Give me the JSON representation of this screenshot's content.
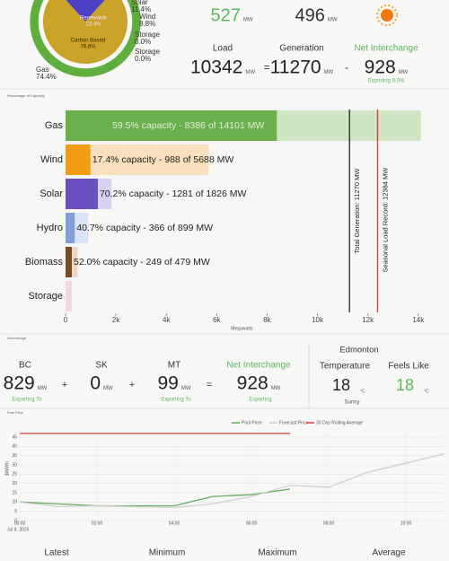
{
  "chart_data": [
    {
      "type": "donut",
      "outer": {
        "categories": [
          "Solar",
          "Wind",
          "Storage",
          "Storage",
          "Gas"
        ],
        "values": [
          11.4,
          8.8,
          0.0,
          0.0,
          74.4
        ],
        "value_labels": [
          "11.4%",
          "8.8%",
          "0.0%",
          "0.0%",
          "74.4%"
        ],
        "colors": [
          "#7b3fd6",
          "#f39c12",
          "#e8b5c8",
          "#e8b5c8",
          "#5fae3e"
        ]
      },
      "inner": {
        "categories": [
          "Renewable",
          "Carbon Based"
        ],
        "values": [
          23.4,
          76.6
        ],
        "value_labels": [
          "23.4%",
          "76.6%"
        ],
        "colors": [
          "#4b3fc4",
          "#c9a227"
        ]
      }
    },
    {
      "type": "bar",
      "title": "Percentage of Capacity",
      "categories": [
        "Gas",
        "Wind",
        "Solar",
        "Hydro",
        "Biomass",
        "Storage"
      ],
      "values": [
        8386,
        988,
        1281,
        366,
        249,
        0
      ],
      "capacity": [
        14101,
        5688,
        1826,
        899,
        479,
        250
      ],
      "bar_labels": [
        "59.5% capacity - 8386 of 14101 MW",
        "17.4% capacity - 988 of 5688 MW",
        "70.2% capacity - 1281 of 1826 MW",
        "40.7% capacity - 366 of 899 MW",
        "52.0% capacity - 249 of 479 MW",
        null
      ],
      "colors": [
        "#6ab04c",
        "#f39c12",
        "#6a4fc0",
        "#7f9fd8",
        "#7a4a1e",
        "#e8b5c8"
      ],
      "capacity_colors": [
        "#cfe5c3",
        "#fbe0bd",
        "#d9d1f0",
        "#dbe4f6",
        "#ead8c8",
        "#f1d7e1"
      ],
      "xlim": [
        0,
        14150
      ],
      "xticks": [
        0,
        {
          "value": 2000,
          "label": "2k"
        },
        {
          "value": 4000,
          "label": "4k"
        },
        {
          "value": 6000,
          "label": "6k"
        },
        {
          "value": 8000,
          "label": "8k"
        },
        {
          "value": 10000,
          "label": "10k"
        },
        {
          "value": 12000,
          "label": "12k"
        },
        {
          "value": 14000,
          "label": "14k"
        }
      ],
      "xlabel": "Megawatts",
      "reference_lines": [
        {
          "value": 11270,
          "label": "Total Generation: 11270 MW",
          "color": "#222222"
        },
        {
          "value": 12384,
          "label": "Seasonal Load Record: 12384 MW",
          "color": "#d63b3b"
        }
      ]
    },
    {
      "type": "line",
      "title": "Pool Price",
      "ylabel": "$/MWh",
      "x": [
        0,
        1,
        2,
        3,
        4,
        5,
        6,
        7,
        8,
        9,
        10,
        11
      ],
      "series": [
        {
          "name": "Pool Price",
          "color": "#5fae5a",
          "values": [
            10,
            9,
            8,
            8,
            8,
            13,
            14,
            17,
            null,
            null,
            null,
            null
          ]
        },
        {
          "name": "Forecast Price",
          "color": "#cfcfcf",
          "values": [
            10,
            7.5,
            8,
            7.5,
            7,
            9,
            13,
            19,
            18,
            26,
            31,
            36
          ]
        },
        {
          "name": "30 Day Rolling Average",
          "color": "#d64545",
          "values": [
            47,
            47,
            47,
            47,
            47,
            47,
            47,
            47,
            null,
            null,
            null,
            null
          ]
        }
      ],
      "xlim": [
        0,
        11
      ],
      "ylim": [
        0,
        48
      ],
      "xticks": [
        {
          "value": 0,
          "label": "00:00"
        },
        {
          "value": 2,
          "label": "02:00"
        },
        {
          "value": 4,
          "label": "04:00"
        },
        {
          "value": 6,
          "label": "06:00"
        },
        {
          "value": 8,
          "label": "08:00"
        },
        {
          "value": 10,
          "label": "10:00"
        }
      ],
      "x_date": "Jul 8, 2025",
      "yticks": [
        0,
        5,
        10,
        15,
        20,
        25,
        30,
        35,
        40,
        45
      ],
      "grid": true
    }
  ],
  "top": [
    {
      "value": 527,
      "unit": "MW",
      "color": "#5cb85c"
    },
    {
      "value": 496,
      "unit": "MW",
      "color": "#333333"
    }
  ],
  "summary": {
    "items": [
      {
        "label": "Load",
        "value": 10342,
        "unit": "MW"
      },
      {
        "label": "Generation",
        "value": 11270,
        "unit": "MW"
      },
      {
        "label": "Net Interchange",
        "value": 928,
        "unit": "MW",
        "note": "Exporting 9.0%"
      }
    ],
    "operators": [
      "=",
      "-"
    ]
  },
  "interchange": {
    "title": "Interchange",
    "items": [
      {
        "label": "BC",
        "value": 829,
        "unit": "MW",
        "note": "Exporting To"
      },
      {
        "label": "SK",
        "value": 0,
        "unit": "MW"
      },
      {
        "label": "MT",
        "value": 99,
        "unit": "MW",
        "note": "Exporting To"
      },
      {
        "label": "Net Interchange",
        "value": 928,
        "unit": "MW",
        "note": "Exporting"
      }
    ],
    "operators": [
      "+",
      "+",
      "="
    ]
  },
  "weather": {
    "city": "Edmonton",
    "items": [
      {
        "label": "Temperature",
        "value": 18,
        "unit": "°C",
        "note": "Sunny"
      },
      {
        "label": "Feels Like",
        "value": 18,
        "unit": "°C"
      }
    ]
  },
  "stat_headers": [
    "Latest",
    "Minimum",
    "Maximum",
    "Average"
  ]
}
